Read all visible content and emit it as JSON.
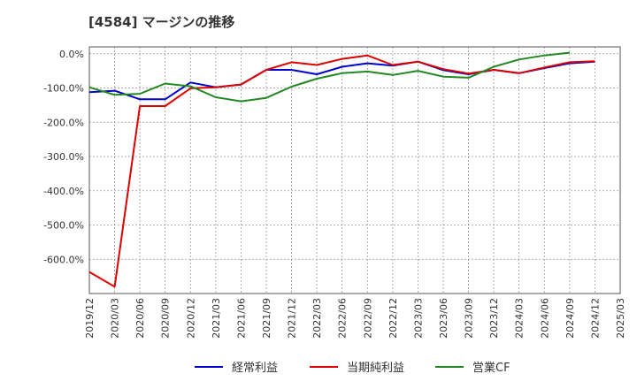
{
  "title": "[4584]  マージンの推移",
  "chart_data": {
    "type": "line",
    "title": "[4584]  マージンの推移",
    "xlabel": "",
    "ylabel": "",
    "x": [
      "2019/12",
      "2020/03",
      "2020/06",
      "2020/09",
      "2020/12",
      "2021/03",
      "2021/06",
      "2021/09",
      "2021/12",
      "2022/03",
      "2022/06",
      "2022/09",
      "2022/12",
      "2023/03",
      "2023/06",
      "2023/09",
      "2023/12",
      "2024/03",
      "2024/06",
      "2024/09",
      "2024/12",
      "2025/03"
    ],
    "ylim": [
      -700,
      20
    ],
    "yticks": [
      0,
      -100,
      -200,
      -300,
      -400,
      -500,
      -600
    ],
    "ytick_labels": [
      "0.0%",
      "-100.0%",
      "-200.0%",
      "-300.0%",
      "-400.0%",
      "-500.0%",
      "-600.0%"
    ],
    "grid": true,
    "legend_position": "bottom",
    "series": [
      {
        "name": "経常利益",
        "color": "#0000cc",
        "values": [
          -112,
          -108,
          -133,
          -133,
          -84,
          -98,
          -90,
          -47,
          -47,
          -60,
          -38,
          -28,
          -35,
          -23,
          -48,
          -60,
          -47,
          -57,
          -42,
          -28,
          -23,
          null
        ]
      },
      {
        "name": "当期純利益",
        "color": "#dd0000",
        "values": [
          -637,
          -680,
          -153,
          -153,
          -101,
          -98,
          -90,
          -47,
          -25,
          -33,
          -15,
          -5,
          -33,
          -23,
          -45,
          -58,
          -47,
          -57,
          -40,
          -25,
          -22,
          null
        ]
      },
      {
        "name": "営業CF",
        "color": "#228822",
        "values": [
          -98,
          -120,
          -117,
          -87,
          -95,
          -127,
          -139,
          -129,
          -96,
          -73,
          -57,
          -52,
          -62,
          -50,
          -67,
          -70,
          -38,
          -17,
          -5,
          3,
          null,
          null
        ]
      }
    ]
  }
}
